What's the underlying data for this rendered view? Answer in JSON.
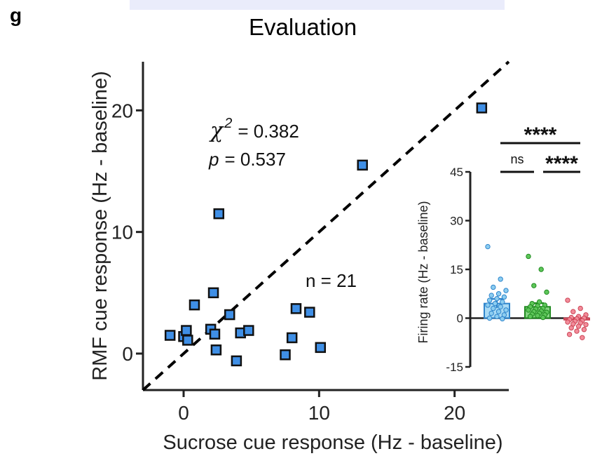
{
  "panel_letter": "g",
  "colors": {
    "main_marker_fill": "#3f8fe6",
    "inset_blue": "#8ccdf0",
    "inset_blue_dark": "#2f85cc",
    "inset_green": "#5ec65a",
    "inset_green_dark": "#1f8a1f",
    "inset_red": "#f28c9a",
    "inset_red_dark": "#cc4455"
  },
  "chart_data": [
    {
      "type": "scatter",
      "title": "Evaluation",
      "xlabel": "Sucrose cue response (Hz - baseline)",
      "ylabel": "RMF cue response (Hz - baseline)",
      "xlim": [
        -3,
        24
      ],
      "ylim": [
        -3,
        24
      ],
      "xticks": [
        0,
        10,
        20
      ],
      "yticks": [
        0,
        10,
        20
      ],
      "marker": "square",
      "reference_line": "identity (dashed)",
      "annotations": {
        "chi_symbol": "χ",
        "chi_exp": "2",
        "chi_value": "= 0.382",
        "p_symbol": "p",
        "p_value": "= 0.537",
        "n_label": "n = 21"
      },
      "points": [
        {
          "x": -1.0,
          "y": 1.5
        },
        {
          "x": 0.0,
          "y": 1.4
        },
        {
          "x": 0.2,
          "y": 1.9
        },
        {
          "x": 0.3,
          "y": 1.1
        },
        {
          "x": 0.8,
          "y": 4.0
        },
        {
          "x": 2.0,
          "y": 2.0
        },
        {
          "x": 2.2,
          "y": 5.0
        },
        {
          "x": 2.3,
          "y": 1.6
        },
        {
          "x": 2.4,
          "y": 0.3
        },
        {
          "x": 2.6,
          "y": 11.5
        },
        {
          "x": 3.4,
          "y": 3.2
        },
        {
          "x": 3.9,
          "y": -0.6
        },
        {
          "x": 4.2,
          "y": 1.7
        },
        {
          "x": 4.8,
          "y": 1.9
        },
        {
          "x": 7.5,
          "y": -0.1
        },
        {
          "x": 8.0,
          "y": 1.3
        },
        {
          "x": 8.3,
          "y": 3.7
        },
        {
          "x": 9.3,
          "y": 3.4
        },
        {
          "x": 10.1,
          "y": 0.5
        },
        {
          "x": 13.2,
          "y": 15.5
        },
        {
          "x": 22.0,
          "y": 20.2
        }
      ]
    },
    {
      "type": "bar",
      "ylabel": "Firing rate (Hz - baseline)",
      "ylim": [
        -15,
        45
      ],
      "yticks": [
        -15,
        0,
        15,
        30,
        45
      ],
      "series": [
        {
          "mean": 4.5,
          "sem": 1.4,
          "points": [
            22,
            12,
            9.5,
            8.5,
            7.5,
            7,
            6.5,
            6,
            5.5,
            5,
            4.5,
            4,
            3.5,
            3,
            2.5,
            2,
            1.5,
            1,
            0.5,
            0,
            -0.2
          ]
        },
        {
          "mean": 3.5,
          "sem": 1.1,
          "points": [
            19,
            15,
            10,
            8,
            5,
            4.5,
            4,
            3.8,
            3.5,
            3,
            2.8,
            2.5,
            2.2,
            2,
            1.8,
            1.5,
            1.2,
            1,
            0.8,
            0.5,
            0.2
          ]
        },
        {
          "mean": -0.5,
          "sem": 0.5,
          "points": [
            5.5,
            3,
            2,
            1,
            0.5,
            0.2,
            0,
            -0.2,
            -0.5,
            -0.8,
            -1,
            -1.2,
            -1.5,
            -1.8,
            -2,
            -2.5,
            -3,
            -3.5,
            -4,
            -5,
            -6
          ]
        }
      ],
      "comparisons": [
        {
          "from": 0,
          "to": 2,
          "label": "****"
        },
        {
          "from": 0,
          "to": 1,
          "label": "ns"
        },
        {
          "from": 1,
          "to": 2,
          "label": "****"
        }
      ]
    }
  ]
}
